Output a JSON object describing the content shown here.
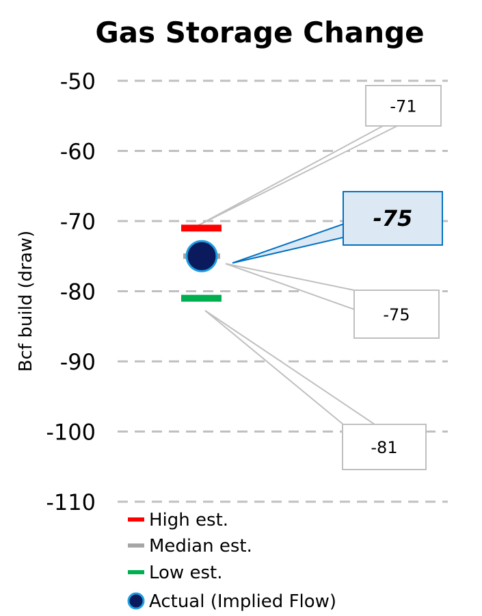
{
  "chart_data": {
    "type": "scatter",
    "title": "Gas Storage Change",
    "ylabel": "Bcf build (draw)",
    "xlabel": "",
    "ylim": [
      -110,
      -50
    ],
    "yticks": [
      -50,
      -60,
      -70,
      -80,
      -90,
      -100,
      -110
    ],
    "ytick_labels": [
      "-50",
      "-60",
      "-70",
      "-80",
      "-90",
      "-100",
      "-110"
    ],
    "grid": true,
    "legend_placement": "bottom",
    "series": [
      {
        "name": "High est.",
        "value": -71,
        "label": "-71",
        "marker": "dash",
        "color": "#ff0000"
      },
      {
        "name": "Median est.",
        "value": -75,
        "label": "-75",
        "marker": "dash",
        "color": "#a6a6a6"
      },
      {
        "name": "Low est.",
        "value": -81,
        "label": "-81",
        "marker": "dash",
        "color": "#00b050"
      },
      {
        "name": "Actual (Implied Flow)",
        "value": -75,
        "label": "-75",
        "marker": "circle",
        "color": "#0a1a5c",
        "edge_color": "#1e9fe0"
      }
    ]
  },
  "colors": {
    "grid": "#bfbfbf",
    "callout_border": "#bfbfbf",
    "actual_callout_border": "#0070c0",
    "actual_callout_fill": "#dce9f5"
  }
}
